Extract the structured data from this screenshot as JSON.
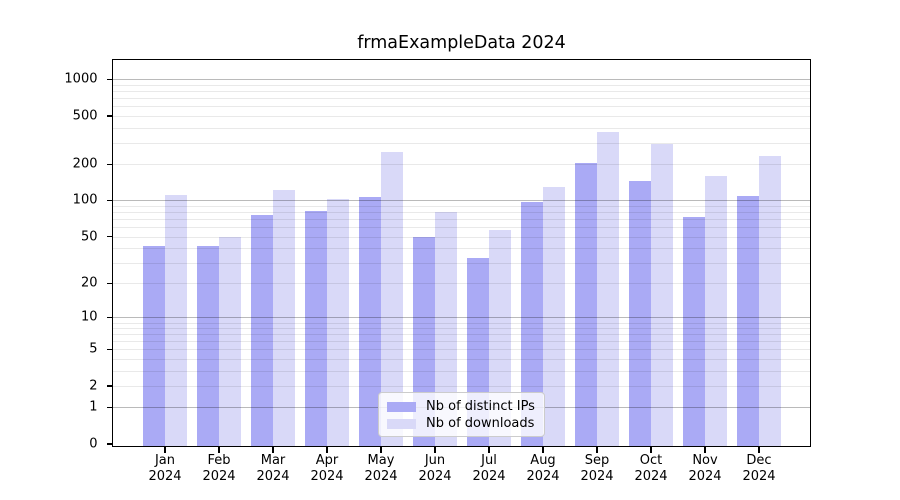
{
  "title": "frmaExampleData 2024",
  "colors": {
    "bar_distinct_ips": "#aaaaf5",
    "bar_downloads": "#d9d9f8",
    "grid_major": "rgba(0,0,0,0.27)",
    "grid_minor": "rgba(0,0,0,0.085)",
    "axis": "#000000",
    "legend_border": "#cccccc",
    "background": "#ffffff"
  },
  "legend": {
    "items": [
      {
        "label": "Nb of distinct IPs",
        "swatch": "bar_distinct_ips"
      },
      {
        "label": "Nb of downloads",
        "swatch": "bar_downloads"
      }
    ]
  },
  "chart_data": {
    "type": "bar",
    "title": "frmaExampleData 2024",
    "categories": [
      "Jan",
      "Feb",
      "Mar",
      "Apr",
      "May",
      "Jun",
      "Jul",
      "Aug",
      "Sep",
      "Oct",
      "Nov",
      "Dec"
    ],
    "year_label": "2024",
    "series": [
      {
        "name": "Nb of distinct IPs",
        "color": "#aaaaf5",
        "values": [
          42,
          42,
          76,
          82,
          107,
          50,
          33,
          97,
          204,
          145,
          73,
          109
        ]
      },
      {
        "name": "Nb of downloads",
        "color": "#d9d9f8",
        "values": [
          112,
          50,
          122,
          103,
          252,
          80,
          57,
          129,
          369,
          294,
          160,
          233
        ]
      }
    ],
    "xlabel": "",
    "ylabel": "",
    "yscale": "log10(value+1)",
    "yticks": [
      0,
      1,
      2,
      5,
      10,
      20,
      50,
      100,
      200,
      500,
      1000
    ],
    "ylim": [
      0,
      1430
    ],
    "grid": true,
    "legend_position": "inside lower center"
  }
}
